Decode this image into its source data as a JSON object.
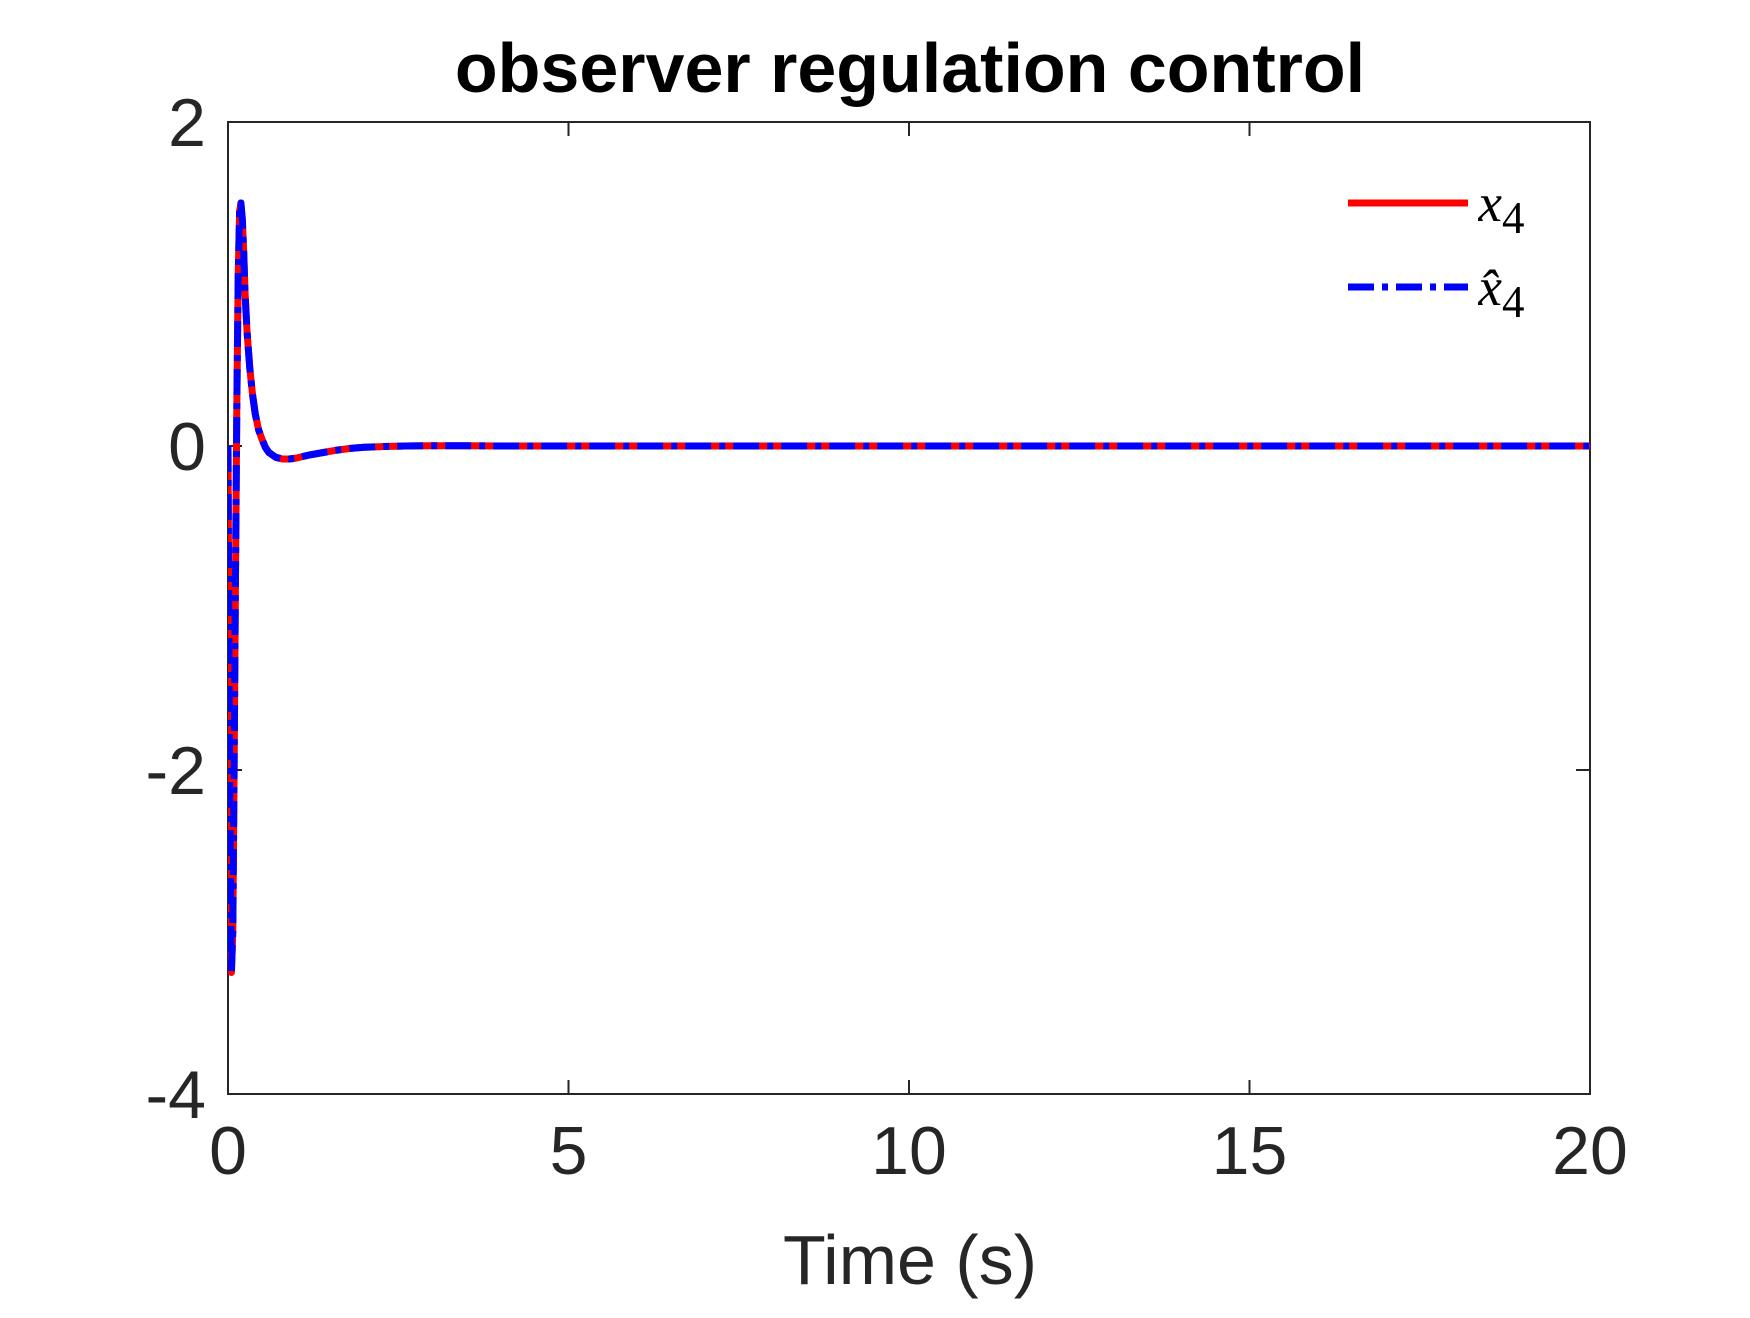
{
  "chart_data": {
    "type": "line",
    "title": "observer regulation control",
    "xlabel": "Time (s)",
    "ylabel": "",
    "xlim": [
      0,
      20
    ],
    "ylim": [
      -4,
      2
    ],
    "xticks": [
      0,
      5,
      10,
      15,
      20
    ],
    "xtick_labels": [
      "0",
      "5",
      "10",
      "15",
      "20"
    ],
    "yticks": [
      -4,
      -2,
      0,
      2
    ],
    "ytick_labels": [
      "-4",
      "-2",
      "0",
      "2"
    ],
    "grid": false,
    "legend_position": "top-right",
    "series": [
      {
        "name": "x_4",
        "name_html": "<i>x</i><sub>4</sub>",
        "color": "#ff0000",
        "style": "solid",
        "x": [
          0,
          0.01,
          0.03,
          0.05,
          0.07,
          0.09,
          0.11,
          0.13,
          0.15,
          0.17,
          0.19,
          0.21,
          0.23,
          0.25,
          0.28,
          0.32,
          0.36,
          0.4,
          0.45,
          0.5,
          0.55,
          0.6,
          0.7,
          0.8,
          0.9,
          1.0,
          1.1,
          1.2,
          1.4,
          1.6,
          1.8,
          2.0,
          2.3,
          2.6,
          3.0,
          3.5,
          4.0,
          5.0,
          6.0,
          8.0,
          10.0,
          12.0,
          14.0,
          16.0,
          18.0,
          20.0
        ],
        "y": [
          0,
          -1.0,
          -2.4,
          -3.25,
          -3.0,
          -2.0,
          -0.8,
          0.3,
          1.05,
          1.45,
          1.5,
          1.4,
          1.2,
          0.95,
          0.7,
          0.48,
          0.32,
          0.2,
          0.1,
          0.04,
          -0.01,
          -0.04,
          -0.07,
          -0.08,
          -0.08,
          -0.075,
          -0.065,
          -0.055,
          -0.04,
          -0.025,
          -0.015,
          -0.008,
          -0.003,
          0,
          0.002,
          0.001,
          0,
          0,
          0,
          0,
          0,
          0,
          0,
          0,
          0,
          0
        ]
      },
      {
        "name": "x̂_4",
        "name_html": "<i>x̂</i><sub>4</sub>",
        "color": "#0000ff",
        "style": "dashdot",
        "x": [
          0,
          0.01,
          0.03,
          0.05,
          0.07,
          0.09,
          0.11,
          0.13,
          0.15,
          0.17,
          0.19,
          0.21,
          0.23,
          0.25,
          0.28,
          0.32,
          0.36,
          0.4,
          0.45,
          0.5,
          0.55,
          0.6,
          0.7,
          0.8,
          0.9,
          1.0,
          1.1,
          1.2,
          1.4,
          1.6,
          1.8,
          2.0,
          2.3,
          2.6,
          3.0,
          3.5,
          4.0,
          5.0,
          6.0,
          8.0,
          10.0,
          12.0,
          14.0,
          16.0,
          18.0,
          20.0
        ],
        "y": [
          0,
          -1.0,
          -2.4,
          -3.25,
          -3.0,
          -2.0,
          -0.8,
          0.3,
          1.05,
          1.45,
          1.5,
          1.4,
          1.2,
          0.95,
          0.7,
          0.48,
          0.32,
          0.2,
          0.1,
          0.04,
          -0.01,
          -0.04,
          -0.07,
          -0.08,
          -0.08,
          -0.075,
          -0.065,
          -0.055,
          -0.04,
          -0.025,
          -0.015,
          -0.008,
          -0.003,
          0,
          0.002,
          0.001,
          0,
          0,
          0,
          0,
          0,
          0,
          0,
          0,
          0,
          0
        ]
      }
    ]
  }
}
